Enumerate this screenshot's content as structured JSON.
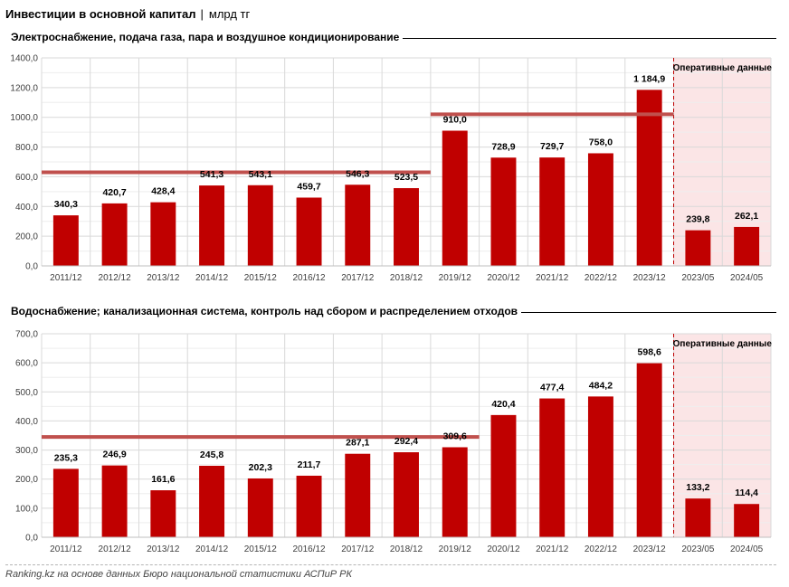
{
  "header": {
    "title": "Инвестиции в основной капитал",
    "separator": "|",
    "unit": "млрд тг"
  },
  "footer": {
    "source_site": "Ranking.kz",
    "source_text": " на основе данных Бюро национальной статистики АСПиР РК"
  },
  "colors": {
    "bar": "#c00000",
    "operational_bg": "#fbe5e6",
    "avg_line": "#c0504d",
    "grid": "#d9d9d9"
  },
  "chart_data": [
    {
      "type": "bar",
      "title": "Электроснабжение, подача газа, пара и воздушное  кондиционирование",
      "categories": [
        "2011/12",
        "2012/12",
        "2013/12",
        "2014/12",
        "2015/12",
        "2016/12",
        "2017/12",
        "2018/12",
        "2019/12",
        "2020/12",
        "2021/12",
        "2022/12",
        "2023/12",
        "2023/05",
        "2024/05"
      ],
      "values": [
        340.3,
        420.7,
        428.4,
        541.3,
        543.1,
        459.7,
        546.3,
        523.5,
        910.0,
        728.9,
        729.7,
        758.0,
        1184.9,
        239.8,
        262.1
      ],
      "value_labels": [
        "340,3",
        "420,7",
        "428,4",
        "541,3",
        "543,1",
        "459,7",
        "546,3",
        "523,5",
        "910,0",
        "728,9",
        "729,7",
        "758,0",
        "1 184,9",
        "239,8",
        "262,1"
      ],
      "yticks": [
        "0,0",
        "200,0",
        "400,0",
        "600,0",
        "800,0",
        "1000,0",
        "1200,0",
        "1400,0"
      ],
      "ylim": [
        0,
        1400
      ],
      "grid": true,
      "operational_label": "Оперативные данные",
      "operational_from_index": 13,
      "average_lines": [
        {
          "from_index": 0,
          "to_index": 7,
          "value": 630
        },
        {
          "from_index": 8,
          "to_index": 12,
          "value": 1020
        }
      ]
    },
    {
      "type": "bar",
      "title": "Водоснабжение; канализационная система, контроль над сбором и распределением отходов",
      "categories": [
        "2011/12",
        "2012/12",
        "2013/12",
        "2014/12",
        "2015/12",
        "2016/12",
        "2017/12",
        "2018/12",
        "2019/12",
        "2020/12",
        "2021/12",
        "2022/12",
        "2023/12",
        "2023/05",
        "2024/05"
      ],
      "values": [
        235.3,
        246.9,
        161.6,
        245.8,
        202.3,
        211.7,
        287.1,
        292.4,
        309.6,
        420.4,
        477.4,
        484.2,
        598.6,
        133.2,
        114.4
      ],
      "value_labels": [
        "235,3",
        "246,9",
        "161,6",
        "245,8",
        "202,3",
        "211,7",
        "287,1",
        "292,4",
        "309,6",
        "420,4",
        "477,4",
        "484,2",
        "598,6",
        "133,2",
        "114,4"
      ],
      "yticks": [
        "0,0",
        "100,0",
        "200,0",
        "300,0",
        "400,0",
        "500,0",
        "600,0",
        "700,0"
      ],
      "ylim": [
        0,
        700
      ],
      "grid": true,
      "operational_label": "Оперативные данные",
      "operational_from_index": 13,
      "average_lines": [
        {
          "from_index": 0,
          "to_index": 8,
          "value": 345
        }
      ]
    }
  ]
}
